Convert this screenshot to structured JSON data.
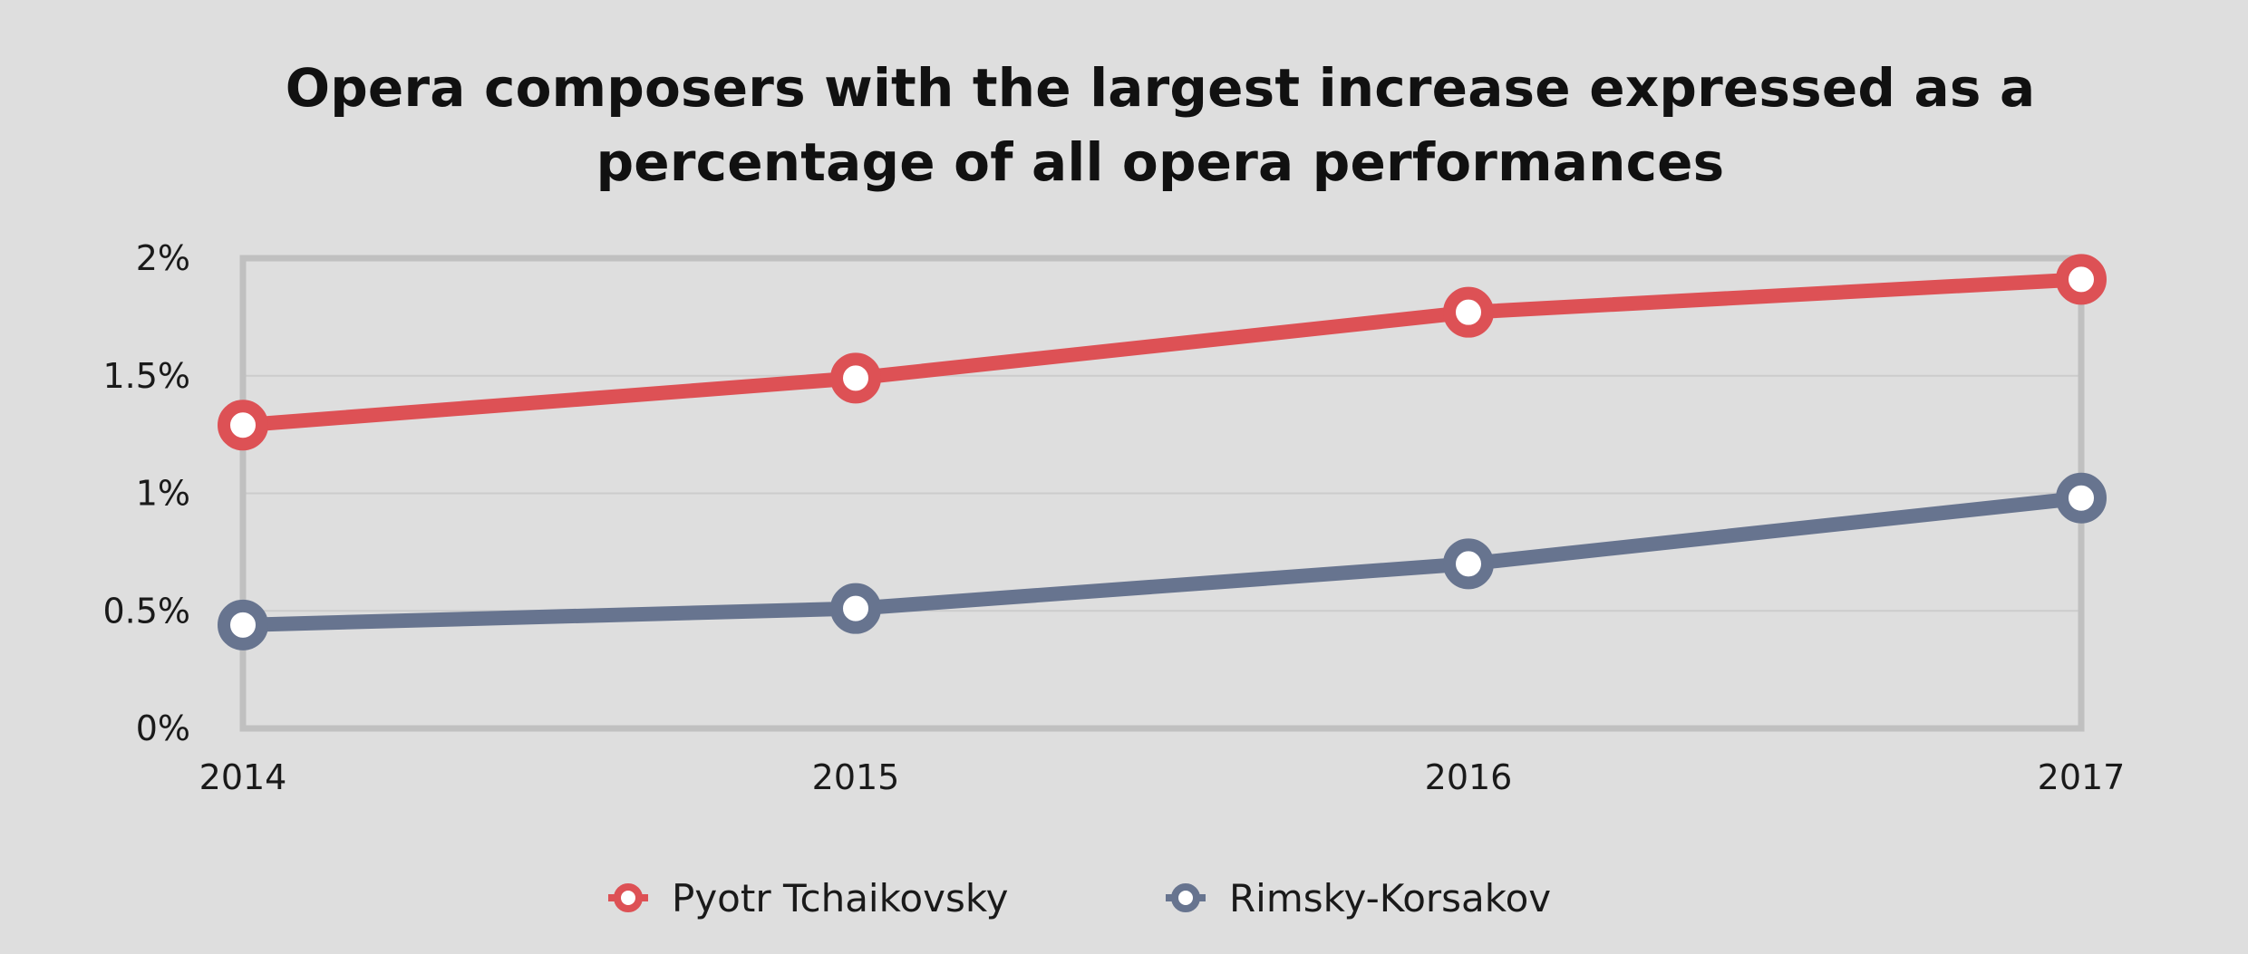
{
  "chart_data": {
    "type": "line",
    "title_lines": [
      "Opera composers with the largest increase expressed as a",
      "percentage of all opera performances"
    ],
    "x": [
      "2014",
      "2015",
      "2016",
      "2017"
    ],
    "y_ticks": [
      "0%",
      "0.5%",
      "1%",
      "1.5%",
      "2%"
    ],
    "ylim": [
      0,
      2
    ],
    "y_unit": "%",
    "grid": true,
    "legend_position": "bottom",
    "series": [
      {
        "name": "Pyotr Tchaikovsky",
        "color": "#dd5155",
        "values": [
          1.29,
          1.49,
          1.77,
          1.91
        ]
      },
      {
        "name": "Rimsky-Korsakov",
        "color": "#67748f",
        "values": [
          0.44,
          0.51,
          0.7,
          0.98
        ]
      }
    ]
  },
  "style": {
    "background": "#dedede",
    "frame_color": "#c0c0c0",
    "grid_color": "#cccccc"
  }
}
